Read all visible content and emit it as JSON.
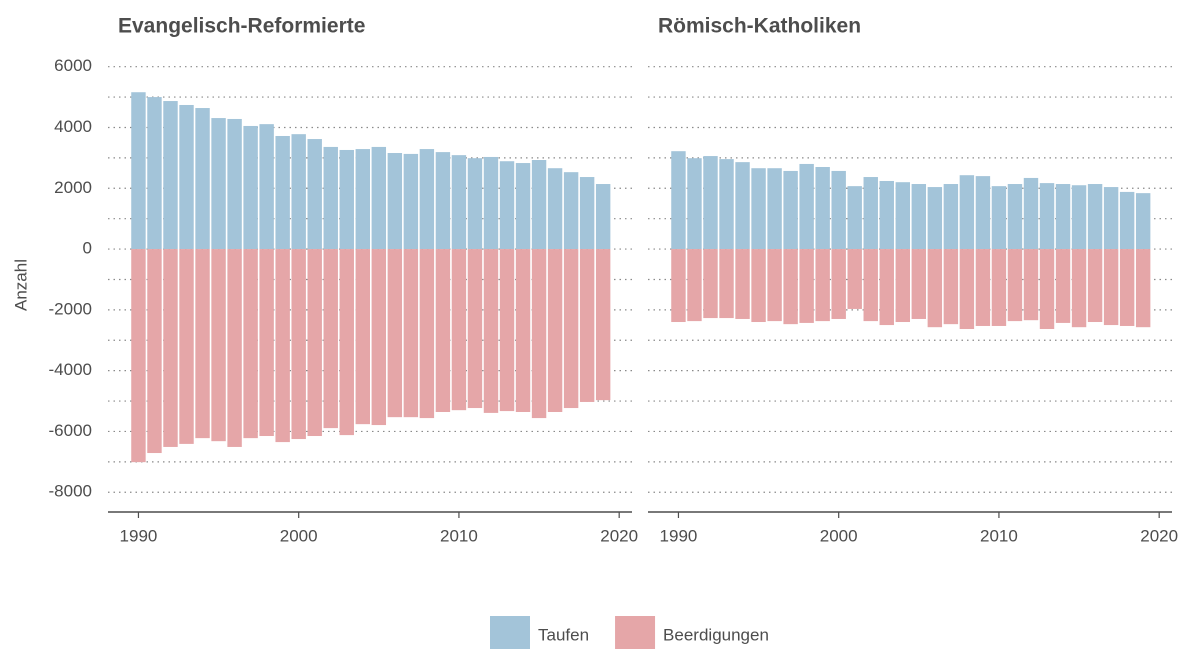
{
  "chart_data": [
    {
      "type": "bar",
      "title": "Evangelisch-Reformierte",
      "ylabel": "Anzahl",
      "x": [
        1990,
        1991,
        1992,
        1993,
        1994,
        1995,
        1996,
        1997,
        1998,
        1999,
        2000,
        2001,
        2002,
        2003,
        2004,
        2005,
        2006,
        2007,
        2008,
        2009,
        2010,
        2011,
        2012,
        2013,
        2014,
        2015,
        2016,
        2017,
        2018,
        2019
      ],
      "series": [
        {
          "name": "Taufen",
          "color": "#a3c4d9",
          "values": [
            5160,
            5000,
            4870,
            4740,
            4640,
            4310,
            4280,
            4050,
            4110,
            3720,
            3780,
            3620,
            3360,
            3260,
            3290,
            3360,
            3160,
            3130,
            3290,
            3190,
            3090,
            2990,
            3030,
            2890,
            2830,
            2930,
            2660,
            2530,
            2370,
            2140
          ]
        },
        {
          "name": "Beerdigungen",
          "color": "#e5a6a8",
          "values": [
            -7010,
            -6710,
            -6510,
            -6410,
            -6220,
            -6320,
            -6510,
            -6220,
            -6150,
            -6350,
            -6250,
            -6150,
            -5890,
            -6120,
            -5760,
            -5790,
            -5530,
            -5530,
            -5560,
            -5360,
            -5300,
            -5230,
            -5390,
            -5330,
            -5360,
            -5560,
            -5360,
            -5230,
            -5030,
            -4970
          ]
        }
      ],
      "xlim": [
        1988.1,
        2020.8
      ],
      "xticks": [
        1990,
        2000,
        2010,
        2020
      ],
      "ylim": [
        -8650,
        6220
      ],
      "yticks": [
        -8000,
        -6000,
        -4000,
        -2000,
        0,
        2000,
        4000,
        6000
      ],
      "grid": true,
      "legend": "bottom"
    },
    {
      "type": "bar",
      "title": "Römisch-Katholiken",
      "x": [
        1990,
        1991,
        1992,
        1993,
        1994,
        1995,
        1996,
        1997,
        1998,
        1999,
        2000,
        2001,
        2002,
        2003,
        2004,
        2005,
        2006,
        2007,
        2008,
        2009,
        2010,
        2011,
        2012,
        2013,
        2014,
        2015,
        2016,
        2017,
        2018,
        2019
      ],
      "series": [
        {
          "name": "Taufen",
          "color": "#a3c4d9",
          "values": [
            3220,
            2990,
            3060,
            2960,
            2860,
            2660,
            2660,
            2570,
            2800,
            2700,
            2570,
            2070,
            2370,
            2240,
            2200,
            2140,
            2040,
            2140,
            2430,
            2400,
            2070,
            2140,
            2340,
            2170,
            2140,
            2100,
            2140,
            2040,
            1880,
            1840
          ]
        },
        {
          "name": "Beerdigungen",
          "color": "#e5a6a8",
          "values": [
            -2400,
            -2370,
            -2270,
            -2270,
            -2300,
            -2400,
            -2370,
            -2470,
            -2430,
            -2370,
            -2300,
            -1970,
            -2370,
            -2500,
            -2400,
            -2300,
            -2570,
            -2470,
            -2630,
            -2530,
            -2530,
            -2370,
            -2340,
            -2630,
            -2430,
            -2570,
            -2400,
            -2500,
            -2530,
            -2570
          ]
        }
      ],
      "xlim": [
        1988.1,
        2020.8
      ],
      "xticks": [
        1990,
        2000,
        2010,
        2020
      ],
      "ylim": [
        -8650,
        6220
      ],
      "grid": true
    }
  ]
}
